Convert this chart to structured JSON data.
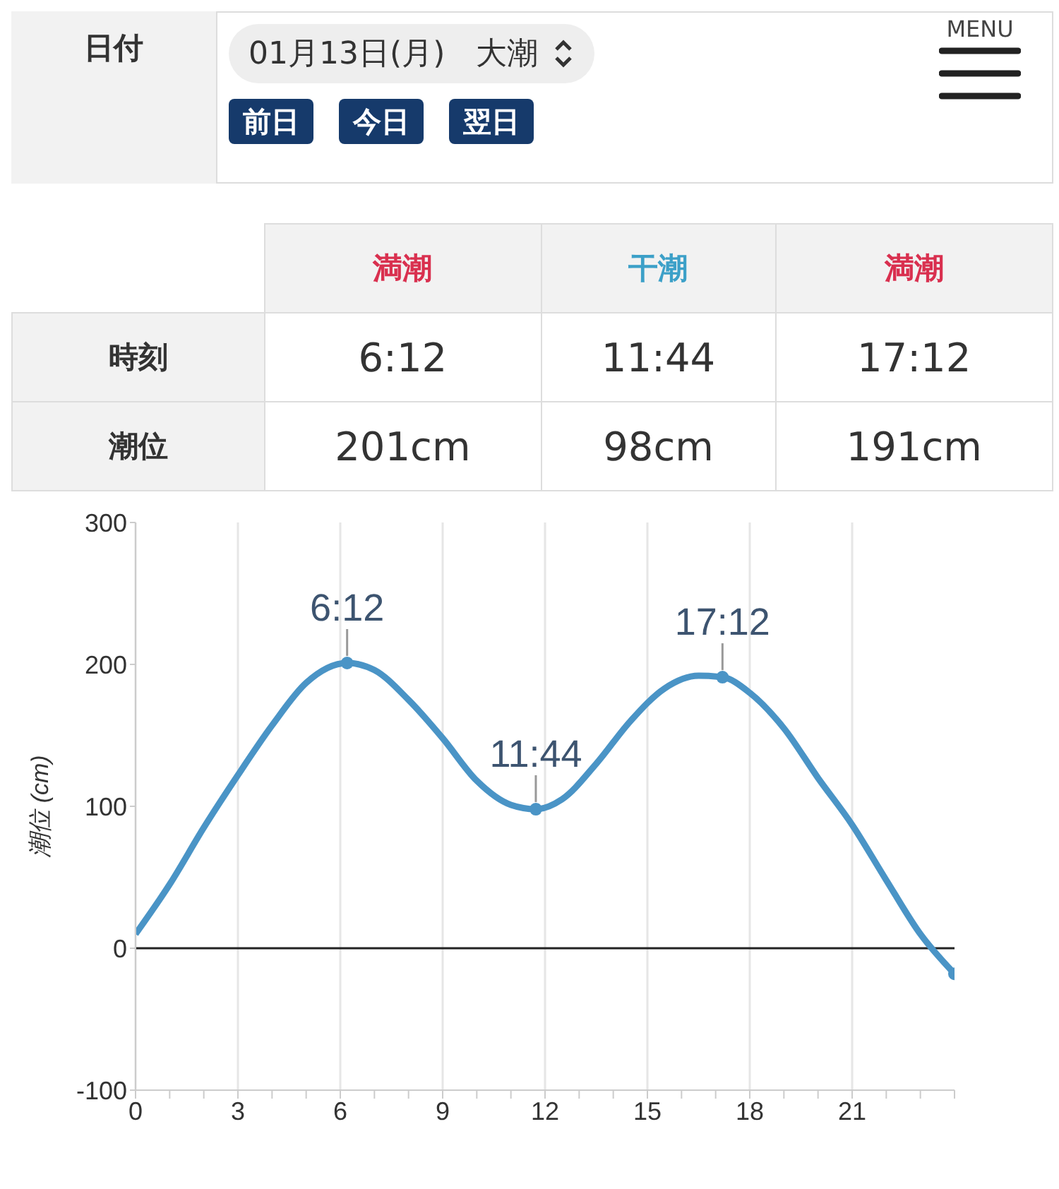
{
  "chart_data": {
    "type": "line",
    "ylabel": "潮位 (cm)",
    "annotations": [
      "日付",
      "01月13日(月)　大潮",
      "前日",
      "今日",
      "翌日",
      "MENU",
      "満潮",
      "干潮",
      "満潮",
      "時刻",
      "6:12",
      "11:44",
      "17:12",
      "潮位",
      "201cm",
      "98cm",
      "191cm",
      {
        "text": "6:12",
        "x": 6.2,
        "y": 201
      },
      {
        "text": "11:44",
        "x": 11.73,
        "y": 98
      },
      {
        "text": "17:12",
        "x": 17.2,
        "y": 191
      }
    ],
    "series": [
      {
        "marker": "none",
        "color": "#4a94c6",
        "x": [
          0,
          1,
          2,
          3,
          4,
          5,
          6.2,
          7,
          8,
          9,
          10,
          11,
          11.73,
          12.5,
          13.5,
          14.5,
          15.5,
          16.5,
          17.2,
          18,
          19,
          20,
          21,
          22,
          23,
          24
        ],
        "values": [
          10,
          45,
          85,
          122,
          157,
          187,
          201,
          196,
          175,
          148,
          118,
          101,
          98,
          105,
          130,
          160,
          183,
          192,
          191,
          180,
          155,
          120,
          87,
          48,
          10,
          -18
        ]
      },
      {
        "type": "scatter",
        "marker": "circle",
        "color": "#4a94c6",
        "x": [
          6.2,
          11.73,
          17.2,
          24
        ],
        "values": [
          201,
          98,
          191,
          -18
        ]
      }
    ],
    "xlim": [
      0,
      24
    ],
    "xticks": [
      0,
      {
        "value": 1,
        "label": null
      },
      {
        "value": 2,
        "label": null
      },
      3,
      {
        "value": 4,
        "label": null
      },
      {
        "value": 5,
        "label": null
      },
      6,
      {
        "value": 7,
        "label": null
      },
      {
        "value": 8,
        "label": null
      },
      9,
      {
        "value": 10,
        "label": null
      },
      {
        "value": 11,
        "label": null
      },
      12,
      {
        "value": 13,
        "label": null
      },
      {
        "value": 14,
        "label": null
      },
      15,
      {
        "value": 16,
        "label": null
      },
      {
        "value": 17,
        "label": null
      },
      18,
      {
        "value": 19,
        "label": null
      },
      {
        "value": 20,
        "label": null
      },
      21,
      {
        "value": 22,
        "label": null
      },
      {
        "value": 23,
        "label": null
      },
      {
        "value": 24,
        "label": null
      }
    ],
    "ylim": [
      -100,
      300
    ],
    "yticks": [
      -100,
      0,
      100,
      200,
      300
    ],
    "grid": "x",
    "line_style": "solid",
    "legend": false,
    "ref_lines": [
      {
        "axis": "y",
        "value": 0,
        "color": "#222222"
      }
    ]
  }
}
